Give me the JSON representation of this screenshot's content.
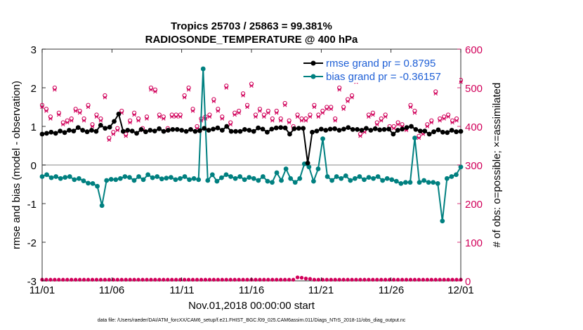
{
  "colors": {
    "rmse": "#000000",
    "bias": "#008080",
    "obs": "#d1005a",
    "zero_line": "#b0b0b0",
    "legend_text": "#1e5fd6"
  },
  "chart_data": {
    "type": "line",
    "title": "Tropics 25703 / 25863 = 99.381%",
    "subtitle": "RADIOSONDE_TEMPERATURE @ 400 hPa",
    "xlabel": "Nov.01,2018 00:00:00 start",
    "ylabel": "rmse and bias (model - observation)",
    "y2label": "# of obs: o=possible; ×=assimilated",
    "x_ticks": [
      "11/01",
      "11/06",
      "11/11",
      "11/16",
      "11/21",
      "11/26",
      "12/01"
    ],
    "xlim": [
      0,
      30
    ],
    "ylim": [
      -3,
      3
    ],
    "y_ticks": [
      "3",
      "2",
      "1",
      "0",
      "-1",
      "-2",
      "-3"
    ],
    "y2lim": [
      0,
      600
    ],
    "y2_ticks": [
      "600",
      "500",
      "400",
      "300",
      "200",
      "100",
      "0"
    ],
    "legend": [
      "rmse grand pr = 0.8795",
      "bias grand pr = -0.36157"
    ],
    "footer": "data file: /Users/raeder/DAI/ATM_forcXX/CAM6_setup/f.e21.FHIST_BGC.f09_025.CAM6assim.011/Diags_NTrS_2018-11/obs_diag_output.nc",
    "series": [
      {
        "name": "rmse",
        "axis": "left",
        "values": [
          0.8,
          0.82,
          0.85,
          0.82,
          0.88,
          0.84,
          0.9,
          0.88,
          0.97,
          0.9,
          0.86,
          0.9,
          0.87,
          1.03,
          0.95,
          0.98,
          1.13,
          1.32,
          0.87,
          0.9,
          0.88,
          0.82,
          0.92,
          0.86,
          0.9,
          0.88,
          0.94,
          0.87,
          0.9,
          0.92,
          0.92,
          0.9,
          0.87,
          0.92,
          0.87,
          0.89,
          0.95,
          0.9,
          0.93,
          0.96,
          0.9,
          1.0,
          0.87,
          0.87,
          0.87,
          0.92,
          0.9,
          0.87,
          0.96,
          0.93,
          0.85,
          0.93,
          0.96,
          0.97,
          0.96,
          0.8,
          0.94,
          0.95,
          0.95,
          0.05,
          0.85,
          0.88,
          0.93,
          0.9,
          0.93,
          0.94,
          0.9,
          0.93,
          0.97,
          0.92,
          0.92,
          0.9,
          0.95,
          0.9,
          0.94,
          0.91,
          0.92,
          0.93,
          0.8,
          0.9,
          0.93,
          0.97,
          1.0,
          0.92,
          0.88,
          0.88,
          0.8,
          0.86,
          0.91,
          0.85,
          0.84,
          0.9,
          0.86,
          0.87
        ]
      },
      {
        "name": "bias",
        "axis": "left",
        "values": [
          -0.3,
          -0.25,
          -0.33,
          -0.3,
          -0.35,
          -0.32,
          -0.3,
          -0.38,
          -0.35,
          -0.41,
          -0.47,
          -0.48,
          -0.55,
          -1.05,
          -0.4,
          -0.37,
          -0.38,
          -0.35,
          -0.3,
          -0.32,
          -0.4,
          -0.3,
          -0.38,
          -0.25,
          -0.33,
          -0.3,
          -0.36,
          -0.34,
          -0.32,
          -0.38,
          -0.35,
          -0.3,
          -0.38,
          -0.35,
          -0.38,
          2.49,
          -0.4,
          -0.25,
          -0.42,
          -0.33,
          -0.25,
          -0.3,
          -0.35,
          -0.3,
          -0.38,
          -0.32,
          -0.35,
          -0.4,
          -0.3,
          -0.42,
          -0.45,
          -0.2,
          -0.4,
          -0.1,
          -0.35,
          -0.45,
          -0.35,
          0.03,
          -0.05,
          -0.42,
          -0.1,
          0.68,
          -0.3,
          -0.4,
          -0.3,
          -0.35,
          -0.28,
          -0.4,
          -0.35,
          -0.3,
          -0.38,
          -0.32,
          -0.35,
          -0.3,
          -0.4,
          -0.35,
          -0.38,
          -0.42,
          -0.48,
          -0.45,
          -0.45,
          0.7,
          -0.45,
          -0.4,
          -0.45,
          -0.45,
          -0.48,
          -1.45,
          -0.35,
          -0.3,
          -0.25,
          -0.05
        ]
      },
      {
        "name": "obs_possible",
        "axis": "right",
        "values": [
          455,
          445,
          425,
          500,
          435,
          410,
          415,
          420,
          445,
          440,
          420,
          455,
          405,
          430,
          420,
          480,
          370,
          385,
          395,
          440,
          380,
          415,
          435,
          420,
          395,
          425,
          500,
          495,
          430,
          425,
          395,
          430,
          430,
          430,
          480,
          500,
          445,
          400,
          420,
          425,
          430,
          470,
          445,
          425,
          505,
          410,
          435,
          440,
          485,
          455,
          510,
          430,
          445,
          430,
          440,
          420,
          440,
          420,
          460,
          415,
          400,
          430,
          420,
          420,
          430,
          455,
          430,
          440,
          450,
          450,
          420,
          500,
          450,
          470,
          480,
          520,
          380,
          390,
          430,
          435,
          410,
          420,
          430,
          400,
          400,
          410,
          405,
          395,
          455,
          440,
          375,
          385,
          405,
          415,
          490,
          420,
          425,
          430,
          415,
          420,
          520
        ]
      },
      {
        "name": "obs_assimilated",
        "axis": "right",
        "values": [
          450,
          440,
          420,
          495,
          430,
          405,
          410,
          415,
          440,
          435,
          415,
          450,
          400,
          425,
          415,
          475,
          365,
          380,
          390,
          435,
          375,
          410,
          430,
          415,
          390,
          420,
          495,
          490,
          425,
          420,
          390,
          425,
          425,
          425,
          475,
          495,
          440,
          395,
          415,
          420,
          425,
          465,
          440,
          420,
          500,
          405,
          430,
          435,
          480,
          450,
          505,
          425,
          440,
          425,
          435,
          415,
          435,
          415,
          455,
          410,
          395,
          425,
          415,
          415,
          425,
          450,
          425,
          435,
          445,
          445,
          415,
          495,
          445,
          465,
          475,
          515,
          375,
          385,
          425,
          430,
          405,
          415,
          425,
          395,
          395,
          405,
          400,
          390,
          450,
          435,
          370,
          380,
          400,
          410,
          485,
          415,
          420,
          425,
          410,
          415,
          515
        ]
      },
      {
        "name": "obs_low",
        "axis": "right",
        "values": [
          3,
          3,
          3,
          3,
          3,
          3,
          3,
          3,
          3,
          3,
          3,
          3,
          3,
          3,
          3,
          3,
          3,
          3,
          3,
          3,
          3,
          3,
          3,
          3,
          3,
          3,
          3,
          3,
          3,
          3,
          3,
          3,
          3,
          3,
          3,
          3,
          3,
          3,
          3,
          3,
          3,
          3,
          3,
          3,
          3,
          3,
          3,
          3,
          3,
          3,
          3,
          3,
          3,
          3,
          3,
          3,
          3,
          3,
          3,
          3,
          3,
          9,
          8,
          6,
          5,
          3,
          3,
          3,
          3,
          3,
          3,
          3,
          3,
          3,
          3,
          3,
          3,
          3,
          3,
          3,
          3,
          3,
          3,
          3,
          3,
          3,
          3,
          3,
          3,
          3,
          3,
          3,
          3,
          3,
          3,
          3,
          3,
          3,
          3,
          3,
          3
        ]
      }
    ]
  }
}
